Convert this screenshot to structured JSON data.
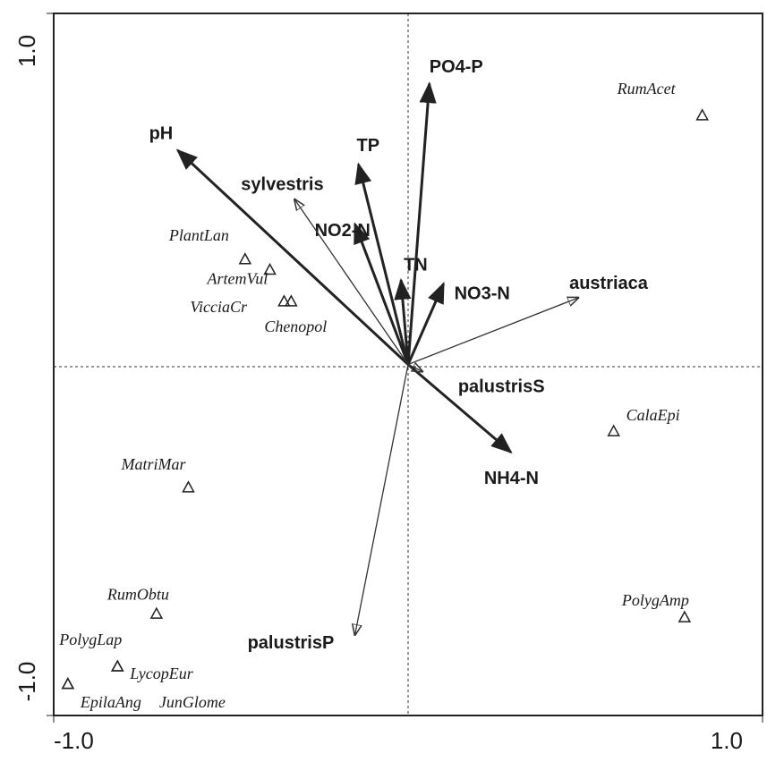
{
  "chart_data": {
    "type": "biplot",
    "xlim": [
      -1,
      1
    ],
    "ylim": [
      -1,
      1
    ],
    "xticks": [
      {
        "value": -1,
        "label": "-1.0"
      },
      {
        "value": 1,
        "label": "1.0"
      }
    ],
    "yticks": [
      {
        "value": -1,
        "label": "-1.0"
      },
      {
        "value": 1,
        "label": "1.0"
      }
    ],
    "env_vectors": {
      "style": "bold",
      "color": "#222222",
      "names": [
        "pH",
        "PO4-P",
        "TP",
        "NO2-N",
        "TN",
        "NO3-N",
        "NH4-N"
      ],
      "x": [
        -0.65,
        0.06,
        -0.14,
        -0.15,
        -0.02,
        0.1,
        0.29
      ],
      "y": [
        0.61,
        0.8,
        0.57,
        0.4,
        0.24,
        0.23,
        -0.25
      ]
    },
    "species_vectors": {
      "style": "thin",
      "color": "#333333",
      "names": [
        "sylvestris",
        "austriaca",
        "palustrisS",
        "palustrisP"
      ],
      "x": [
        -0.32,
        0.48,
        0.04,
        -0.15
      ],
      "y": [
        0.47,
        0.19,
        -0.02,
        -0.77
      ]
    },
    "samples": {
      "marker": "triangle",
      "color": "#222222",
      "names": [
        "RumAcet",
        "PlantLan",
        "ArtemVul",
        "VicciaCr",
        "Chenopol",
        "CalaEpi",
        "MatriMar",
        "RumObtu",
        "PolygLap",
        "LycopEur",
        "EpilaAng",
        "JunGlome",
        "PolygAmp"
      ],
      "x": [
        0.83,
        -0.46,
        -0.39,
        -0.35,
        -0.33,
        0.58,
        -0.62,
        -0.71,
        -0.82,
        -0.82,
        -0.96,
        -0.96,
        0.78
      ],
      "y": [
        0.71,
        0.3,
        0.27,
        0.18,
        0.18,
        -0.19,
        -0.35,
        -0.71,
        -0.86,
        -0.86,
        -0.91,
        -0.91,
        -0.72
      ]
    }
  }
}
